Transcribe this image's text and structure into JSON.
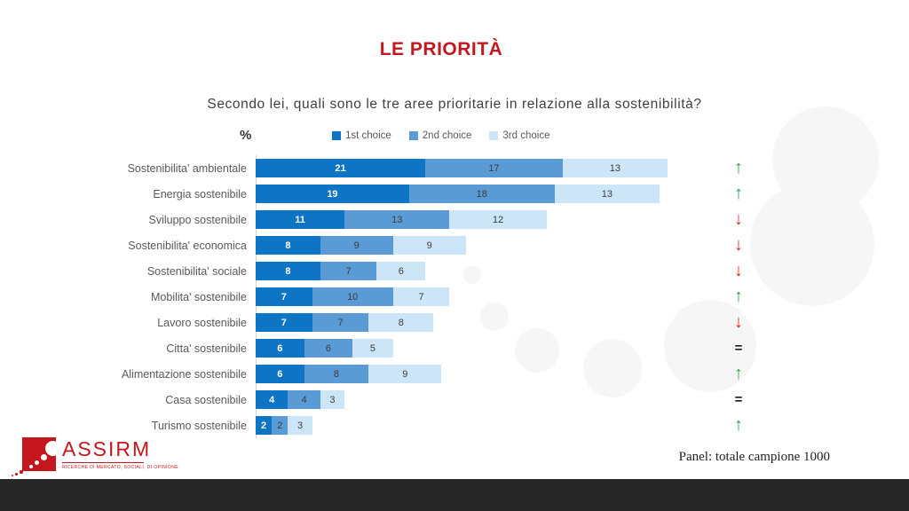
{
  "title": "LE PRIORITÀ",
  "subtitle": "Secondo lei, quali sono le tre aree prioritarie in relazione alla sostenibilità?",
  "percent_label": "%",
  "legend": {
    "items": [
      {
        "label": "1st choice",
        "color": "#0e74c4"
      },
      {
        "label": "2nd choice",
        "color": "#5b9bd5"
      },
      {
        "label": "3rd choice",
        "color": "#cde6f7"
      }
    ]
  },
  "chart_data": {
    "type": "bar",
    "orientation": "horizontal",
    "stacked": true,
    "unit": "%",
    "title": "LE PRIORITÀ",
    "categories": [
      "Sostenibilita' ambientale",
      "Energia sostenibile",
      "Sviluppo sostenibile",
      "Sostenibilita' economica",
      "Sostenibilita' sociale",
      "Mobilita' sostenibile",
      "Lavoro sostenibile",
      "Citta' sostenibile",
      "Alimentazione sostenibile",
      "Casa sostenibile",
      "Turismo sostenibile"
    ],
    "series": [
      {
        "name": "1st choice",
        "color": "#0e74c4",
        "values": [
          21,
          19,
          11,
          8,
          8,
          7,
          7,
          6,
          6,
          4,
          2
        ]
      },
      {
        "name": "2nd choice",
        "color": "#5b9bd5",
        "values": [
          17,
          18,
          13,
          9,
          7,
          10,
          7,
          6,
          8,
          4,
          2
        ]
      },
      {
        "name": "3rd choice",
        "color": "#cde6f7",
        "values": [
          13,
          13,
          12,
          9,
          6,
          7,
          8,
          5,
          9,
          3,
          3
        ]
      }
    ],
    "trends": [
      "up",
      "up",
      "down",
      "down",
      "down",
      "up",
      "down",
      "equal",
      "up",
      "equal",
      "up"
    ],
    "xlim": [
      0,
      51
    ],
    "grid": false,
    "legend_position": "top"
  },
  "trend_colors": {
    "up": "#2da44e",
    "down": "#e02b27",
    "equal": "#1a1a1a"
  },
  "trend_glyphs": {
    "up": "↑",
    "down": "↓",
    "equal": "="
  },
  "footer": {
    "panel_note": "Panel: totale campione 1000"
  },
  "logo": {
    "name": "ASSIRM",
    "tagline": "RICERCHE DI MERCATO, SOCIALI, DI OPINIONE"
  }
}
